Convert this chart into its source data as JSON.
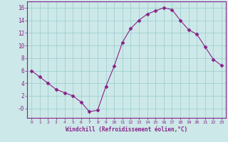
{
  "x": [
    0,
    1,
    2,
    3,
    4,
    5,
    6,
    7,
    8,
    9,
    10,
    11,
    12,
    13,
    14,
    15,
    16,
    17,
    18,
    19,
    20,
    21,
    22,
    23
  ],
  "y": [
    6,
    5,
    4,
    3,
    2.5,
    2,
    1,
    -0.5,
    -0.3,
    3.5,
    6.7,
    10.5,
    12.7,
    14.0,
    15.0,
    15.5,
    16.0,
    15.7,
    14.0,
    12.5,
    11.8,
    9.8,
    7.8,
    6.8
  ],
  "line_color": "#882288",
  "marker": "D",
  "marker_size": 2.5,
  "bg_color": "#cce8e8",
  "grid_color": "#99cccc",
  "xlabel": "Windchill (Refroidissement éolien,°C)",
  "xlabel_color": "#882288",
  "ylim": [
    -1.5,
    17
  ],
  "xlim": [
    -0.5,
    23.5
  ],
  "yticks": [
    0,
    2,
    4,
    6,
    8,
    10,
    12,
    14,
    16
  ],
  "ytick_labels": [
    "-0",
    "2",
    "4",
    "6",
    "8",
    "10",
    "12",
    "14",
    "16"
  ],
  "xticks": [
    0,
    1,
    2,
    3,
    4,
    5,
    6,
    7,
    8,
    9,
    10,
    11,
    12,
    13,
    14,
    15,
    16,
    17,
    18,
    19,
    20,
    21,
    22,
    23
  ]
}
